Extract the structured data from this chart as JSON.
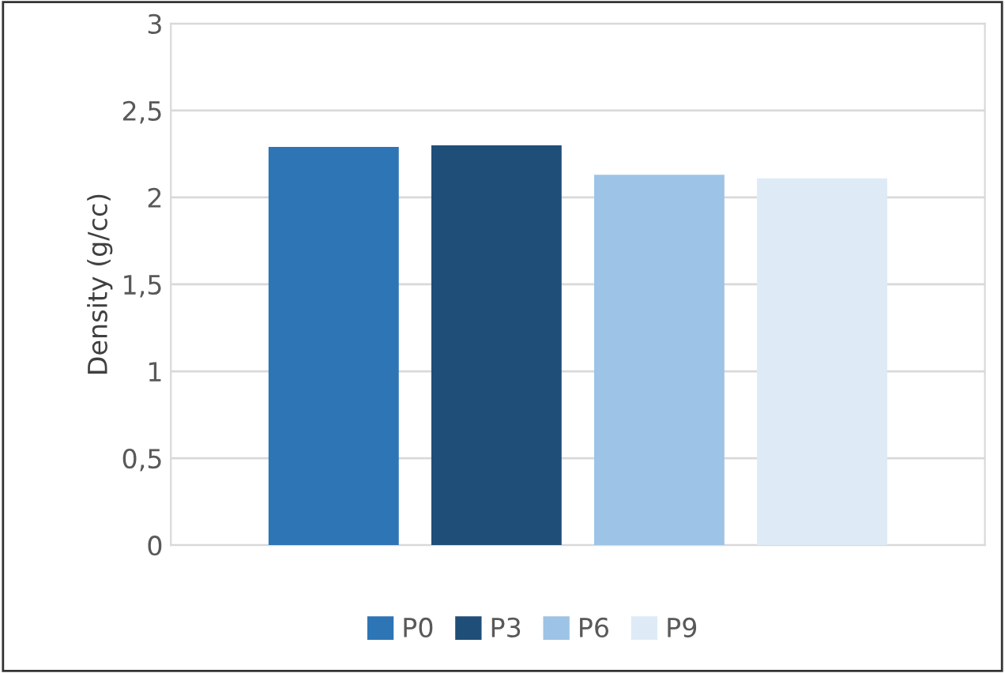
{
  "chart_data": {
    "type": "bar",
    "ylabel": "Density (g/cc)",
    "categories": [
      null
    ],
    "series": [
      {
        "name": "P0",
        "color": "#2e75b6",
        "values": [
          2.29
        ]
      },
      {
        "name": "P3",
        "color": "#1f4e79",
        "values": [
          2.3
        ]
      },
      {
        "name": "P6",
        "color": "#9dc3e6",
        "values": [
          2.13
        ]
      },
      {
        "name": "P9",
        "color": "#deebf7",
        "values": [
          2.11
        ]
      }
    ],
    "ylim": [
      0,
      3
    ],
    "yticks": [
      {
        "value": 0,
        "label": "0"
      },
      {
        "value": 0.5,
        "label": "0,5"
      },
      {
        "value": 1,
        "label": "1"
      },
      {
        "value": 1.5,
        "label": "1,5"
      },
      {
        "value": 2,
        "label": "2"
      },
      {
        "value": 2.5,
        "label": "2,5"
      },
      {
        "value": 3,
        "label": "3"
      }
    ],
    "grid": "y",
    "legend": "bottom"
  }
}
